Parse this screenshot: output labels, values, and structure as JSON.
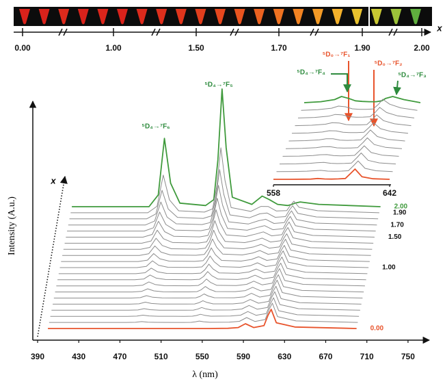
{
  "color_bar": {
    "labels": [
      "0.00",
      "1.00",
      "1.50",
      "1.70",
      "1.90",
      "2.00"
    ],
    "axis_label": "x"
  },
  "chart_data": [
    {
      "type": "waterfall",
      "x_label": "λ (nm)",
      "y_label": "Intensity (A.u.)",
      "depth_label": "x",
      "annotations": [
        "⁵D₄→⁷F₆",
        "⁵D₄→⁷F₅"
      ],
      "xlim": [
        385,
        770
      ],
      "xticks": [
        390,
        430,
        470,
        510,
        550,
        590,
        630,
        670,
        710,
        750
      ],
      "ylim": [
        0,
        180
      ],
      "x": [
        400,
        475,
        484,
        490,
        496,
        505,
        530,
        538,
        542,
        546,
        550,
        556,
        575,
        585,
        592,
        600,
        610,
        614,
        617,
        622,
        640,
        700
      ],
      "series": [
        {
          "name": "0.00",
          "color": "#e8532b",
          "values": [
            0,
            0,
            0,
            0,
            0,
            0,
            0,
            0,
            0,
            0,
            0,
            0,
            0.3,
            1.4,
            7,
            1.4,
            4.2,
            19.6,
            28,
            8.4,
            2.2,
            0
          ]
        },
        {
          "name": null,
          "color": "#8c8c8c",
          "values": [
            0,
            0,
            0.2,
            1.2,
            0.4,
            0.1,
            0,
            0.1,
            0.8,
            2,
            1,
            0.2,
            0.3,
            1.6,
            7.1,
            1.4,
            4.2,
            19.6,
            28.1,
            8.5,
            2.2,
            0
          ]
        },
        {
          "name": null,
          "color": "#8c8c8c",
          "values": [
            0,
            0,
            0.3,
            1.7,
            0.6,
            0.1,
            0,
            0.2,
            1.2,
            3,
            1.5,
            0.2,
            0.4,
            1.7,
            7,
            1.5,
            4.1,
            19,
            27.1,
            8.2,
            2.3,
            0
          ]
        },
        {
          "name": null,
          "color": "#8c8c8c",
          "values": [
            0,
            0,
            0.4,
            2.3,
            0.8,
            0.1,
            0,
            0.2,
            1.6,
            4,
            2,
            0.3,
            0.4,
            1.8,
            7,
            1.5,
            4.1,
            19,
            27.1,
            8.3,
            2.3,
            0
          ]
        },
        {
          "name": null,
          "color": "#8c8c8c",
          "values": [
            0,
            0,
            0.5,
            2.9,
            1,
            0.2,
            0.1,
            0.3,
            2,
            5,
            2.5,
            0.4,
            0.4,
            1.8,
            6.8,
            1.4,
            4,
            18.3,
            26.2,
            8,
            2.2,
            0
          ]
        },
        {
          "name": null,
          "color": "#8c8c8c",
          "values": [
            0,
            0,
            0.6,
            3.5,
            1.2,
            0.2,
            0.1,
            0.4,
            2.4,
            6,
            3,
            0.5,
            0.4,
            1.8,
            6.9,
            1.4,
            4,
            18.3,
            26.2,
            8,
            2.2,
            0
          ]
        },
        {
          "name": null,
          "color": "#8c8c8c",
          "values": [
            0,
            0,
            0.8,
            4.6,
            1.6,
            0.2,
            0.1,
            0.5,
            3.2,
            8,
            4,
            0.6,
            0.5,
            2,
            6.8,
            1.5,
            3.9,
            17.7,
            25.2,
            7.8,
            2.2,
            0
          ]
        },
        {
          "name": null,
          "color": "#8c8c8c",
          "values": [
            0,
            0,
            1,
            5.8,
            2,
            0.3,
            0.1,
            0.6,
            4,
            10,
            5,
            0.8,
            0.5,
            2.2,
            6.9,
            1.5,
            3.9,
            17.7,
            25.3,
            7.9,
            2.2,
            0
          ]
        },
        {
          "name": null,
          "color": "#8c8c8c",
          "values": [
            0,
            0,
            1.2,
            7,
            2.4,
            0.4,
            0.1,
            0.7,
            4.8,
            12,
            6,
            1,
            0.4,
            2.3,
            6.7,
            1.4,
            3.7,
            17,
            24.4,
            7.7,
            2.1,
            0
          ]
        },
        {
          "name": null,
          "color": "#8c8c8c",
          "values": [
            0,
            0,
            1.4,
            8.1,
            2.8,
            0.4,
            0.1,
            0.8,
            5.6,
            14,
            7,
            1.1,
            0.5,
            2.5,
            6.8,
            1.5,
            3.7,
            17.1,
            24.4,
            7.8,
            2.2,
            0
          ]
        },
        {
          "name": "1.00",
          "color": "#8c8c8c",
          "values": [
            0,
            0,
            1.7,
            9.9,
            3.4,
            0.5,
            0.2,
            1,
            6.8,
            17,
            8.5,
            1.4,
            0.5,
            2.7,
            7,
            1.5,
            3.8,
            17.1,
            24.5,
            7.9,
            2.2,
            0
          ]
        },
        {
          "name": null,
          "color": "#8c8c8c",
          "values": [
            0,
            0,
            2,
            11.6,
            4,
            0.6,
            0.2,
            1.2,
            8,
            20,
            10,
            1.6,
            0.6,
            3,
            7,
            1.6,
            3.7,
            16.5,
            23.6,
            7.7,
            2.2,
            0
          ]
        },
        {
          "name": null,
          "color": "#8c8c8c",
          "values": [
            0,
            0,
            2.4,
            13.9,
            4.8,
            0.7,
            0.2,
            1.4,
            9.6,
            24,
            12,
            1.9,
            0.7,
            3.4,
            7.2,
            1.7,
            3.7,
            16.6,
            23.7,
            7.9,
            2.3,
            0
          ]
        },
        {
          "name": null,
          "color": "#8c8c8c",
          "values": [
            0,
            0,
            2.8,
            16.2,
            5.6,
            0.8,
            0.3,
            1.7,
            11.2,
            28,
            14,
            2.2,
            0.8,
            3.6,
            7.2,
            1.7,
            3.6,
            16,
            22.8,
            7.7,
            2.4,
            0
          ]
        },
        {
          "name": null,
          "color": "#8c8c8c",
          "values": [
            0,
            0,
            3.3,
            19.1,
            6.6,
            1,
            0.3,
            2,
            13.2,
            33,
            16.5,
            2.6,
            0.9,
            4.1,
            7.5,
            1.8,
            3.6,
            16.1,
            23,
            7.9,
            2.5,
            0
          ]
        },
        {
          "name": "1.50",
          "color": "#8c8c8c",
          "values": [
            0,
            0,
            4,
            23.2,
            8,
            1.2,
            0.4,
            2.4,
            16,
            40,
            20,
            3.2,
            1,
            4.7,
            7.7,
            1.9,
            3.6,
            15.5,
            22.2,
            7.9,
            2.5,
            0
          ]
        },
        {
          "name": null,
          "color": "#8c8c8c",
          "values": [
            0,
            0,
            4.8,
            27.8,
            9.6,
            1.4,
            0.5,
            2.9,
            19.2,
            48,
            24,
            3.8,
            1.2,
            5.3,
            7.9,
            2,
            3.5,
            15,
            21.4,
            7.9,
            2.6,
            0
          ]
        },
        {
          "name": "1.70",
          "color": "#8c8c8c",
          "values": [
            0,
            0,
            5.8,
            33.6,
            11.6,
            1.7,
            0.6,
            3.5,
            23.2,
            58,
            29,
            4.6,
            1.4,
            6.2,
            8.3,
            2.2,
            3.5,
            14.5,
            20.7,
            8,
            2.7,
            0
          ]
        },
        {
          "name": null,
          "color": "#8c8c8c",
          "values": [
            0,
            0,
            7.2,
            41.8,
            14.4,
            2.2,
            0.7,
            4.3,
            28.8,
            72,
            36,
            5.8,
            1.6,
            7.4,
            8.6,
            2.3,
            3.3,
            13.3,
            19.2,
            8,
            2.8,
            0
          ]
        },
        {
          "name": "1.90",
          "color": "#8c8c8c",
          "values": [
            0,
            0,
            9.5,
            55.1,
            19,
            2.9,
            1,
            5.7,
            38,
            95,
            47.5,
            7.6,
            2,
            9.3,
            9.2,
            2.6,
            3.1,
            11.7,
            16.9,
            8,
            3,
            0
          ]
        },
        {
          "name": "2.00",
          "color": "#3f9a3c",
          "values": [
            0,
            0,
            17.2,
            99.8,
            34.4,
            5.2,
            1.7,
            10.3,
            68.8,
            172,
            86,
            13.8,
            3.4,
            15.5,
            10.3,
            3.4,
            1.7,
            3.4,
            5.2,
            6.9,
            3.4,
            0
          ]
        }
      ]
    },
    {
      "type": "waterfall",
      "annotations": [
        {
          "text": "⁵D₀→⁷F₁",
          "color": "#e8532b"
        },
        {
          "text": "⁵D₄→⁷F₄",
          "color": "#2e8b3e"
        },
        {
          "text": "⁵D₀→⁷F₂",
          "color": "#e8532b"
        },
        {
          "text": "⁵D₄→⁷F₃",
          "color": "#2e8b3e"
        }
      ],
      "xlim": [
        558,
        642
      ],
      "xticks": [
        558,
        642
      ],
      "x": [
        558,
        570,
        580,
        585,
        590,
        595,
        600,
        605,
        610,
        614,
        617,
        622,
        630,
        642
      ],
      "series": [
        {
          "color": "#e8532b",
          "values": [
            0,
            0,
            0.2,
            0.3,
            1.2,
            0.5,
            0.3,
            0.6,
            1.2,
            9,
            15,
            3.8,
            0.8,
            0
          ]
        },
        {
          "color": "#8c8c8c",
          "values": [
            0,
            0.2,
            0.7,
            1.3,
            1.9,
            0.8,
            0.5,
            0.8,
            1.4,
            9.3,
            15.7,
            4.8,
            1.3,
            0
          ]
        },
        {
          "color": "#8c8c8c",
          "values": [
            0,
            0.2,
            1,
            1.8,
            2.3,
            1,
            0.6,
            0.8,
            1.4,
            9.5,
            16.1,
            5.3,
            1.6,
            0
          ]
        },
        {
          "color": "#8c8c8c",
          "values": [
            0,
            0.3,
            1.1,
            2.3,
            2.5,
            1,
            0.7,
            0.9,
            1.4,
            9,
            15.4,
            5.5,
            1.7,
            0
          ]
        },
        {
          "color": "#8c8c8c",
          "values": [
            0,
            0.4,
            1.4,
            2.8,
            2.9,
            1.2,
            0.8,
            1,
            1.5,
            9.2,
            15.8,
            6,
            2,
            0
          ]
        },
        {
          "color": "#8c8c8c",
          "values": [
            0,
            0.5,
            1.6,
            3.3,
            3.2,
            1.3,
            0.9,
            1.1,
            1.6,
            9.3,
            16.1,
            6.5,
            2.2,
            0
          ]
        },
        {
          "color": "#8c8c8c",
          "values": [
            0,
            0.5,
            1.9,
            3.8,
            3.5,
            1.5,
            1,
            1,
            1.5,
            8.9,
            15.5,
            6.8,
            2.5,
            0
          ]
        },
        {
          "color": "#8c8c8c",
          "values": [
            0,
            0.6,
            2.1,
            4.3,
            3.8,
            1.6,
            1.1,
            1.1,
            1.6,
            9,
            15.8,
            7.3,
            2.7,
            0
          ]
        },
        {
          "color": "#8c8c8c",
          "values": [
            0,
            0.8,
            2.6,
            5.2,
            4.5,
            1.9,
            1.2,
            1.3,
            1.8,
            8.7,
            15.5,
            8,
            3.1,
            0
          ]
        },
        {
          "color": "#8c8c8c",
          "values": [
            0,
            0.9,
            3.1,
            6.2,
            5.2,
            2.2,
            1.4,
            1.4,
            1.9,
            9,
            16.2,
            9,
            3.6,
            0
          ]
        },
        {
          "color": "#3f9a3c",
          "values": [
            0,
            1.4,
            4.5,
            9,
            6.3,
            2.7,
            1.8,
            1.4,
            1.4,
            2.7,
            6.3,
            9,
            4.5,
            0
          ]
        }
      ]
    }
  ]
}
